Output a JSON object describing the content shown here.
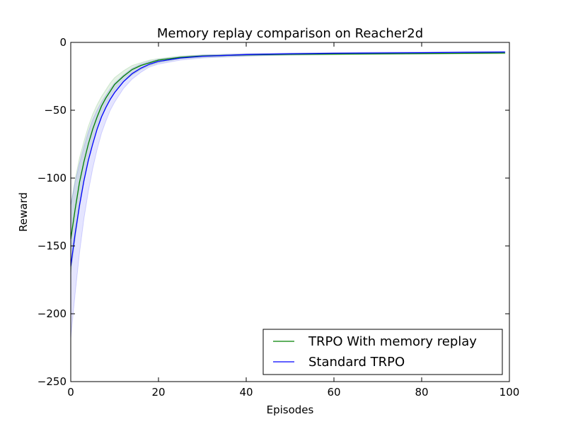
{
  "chart_data": {
    "type": "line",
    "title": "Memory replay comparison on Reacher2d",
    "xlabel": "Episodes",
    "ylabel": "Reward",
    "xlim": [
      0,
      100
    ],
    "ylim": [
      -250,
      0
    ],
    "xticks": [
      0,
      20,
      40,
      60,
      80,
      100
    ],
    "yticks": [
      0,
      -50,
      -100,
      -150,
      -200,
      -250
    ],
    "xtick_labels": [
      "0",
      "20",
      "40",
      "60",
      "80",
      "100"
    ],
    "ytick_labels": [
      "0",
      "−50",
      "−100",
      "−150",
      "−200",
      "−250"
    ],
    "grid": false,
    "legend_position": "lower-right",
    "series": [
      {
        "name": "TRPO With memory replay",
        "color": "#008000",
        "band_color": "#008000",
        "x": [
          0,
          1,
          2,
          3,
          4,
          5,
          6,
          7,
          8,
          9,
          10,
          12,
          14,
          16,
          18,
          20,
          25,
          30,
          40,
          50,
          60,
          70,
          80,
          90,
          99
        ],
        "values": [
          -145,
          -123,
          -103,
          -88,
          -75,
          -64,
          -55,
          -47,
          -41,
          -36,
          -31,
          -25,
          -20,
          -17,
          -15,
          -13,
          -11,
          -10,
          -9.2,
          -8.8,
          -8.6,
          -8.4,
          -8.2,
          -8.0,
          -7.8
        ],
        "lower": [
          -170,
          -145,
          -122,
          -103,
          -88,
          -75,
          -64,
          -55,
          -48,
          -42,
          -37,
          -29,
          -24,
          -20,
          -17,
          -15,
          -12,
          -11,
          -10,
          -9.5,
          -9.2,
          -9,
          -8.8,
          -8.6,
          -8.4
        ],
        "upper": [
          -120,
          -101,
          -85,
          -73,
          -62,
          -53,
          -46,
          -40,
          -35,
          -30,
          -26,
          -21,
          -17,
          -15,
          -13,
          -12,
          -10,
          -9.2,
          -8.5,
          -8.2,
          -8,
          -7.8,
          -7.6,
          -7.4,
          -7.2
        ]
      },
      {
        "name": "Standard TRPO",
        "color": "#0000ff",
        "band_color": "#0000ff",
        "x": [
          0,
          1,
          2,
          3,
          4,
          5,
          6,
          7,
          8,
          9,
          10,
          12,
          14,
          16,
          18,
          20,
          25,
          30,
          40,
          50,
          60,
          70,
          80,
          90,
          99
        ],
        "values": [
          -165,
          -141,
          -120,
          -102,
          -87,
          -75,
          -64,
          -55,
          -48,
          -42,
          -37,
          -29,
          -23,
          -19,
          -16,
          -14,
          -11.5,
          -10.2,
          -9,
          -8.4,
          -8,
          -7.8,
          -7.6,
          -7.3,
          -7.1
        ],
        "lower": [
          -218,
          -185,
          -155,
          -130,
          -110,
          -93,
          -79,
          -67,
          -58,
          -50,
          -44,
          -34,
          -27,
          -22,
          -18,
          -16,
          -13,
          -11.5,
          -10,
          -9.2,
          -8.8,
          -8.5,
          -8.3,
          -8,
          -7.8
        ],
        "upper": [
          -120,
          -103,
          -89,
          -77,
          -66,
          -57,
          -50,
          -44,
          -39,
          -34,
          -30,
          -24,
          -19,
          -16,
          -14,
          -12.5,
          -10.5,
          -9.3,
          -8.3,
          -7.8,
          -7.4,
          -7.2,
          -7,
          -6.8,
          -6.6
        ]
      }
    ]
  }
}
